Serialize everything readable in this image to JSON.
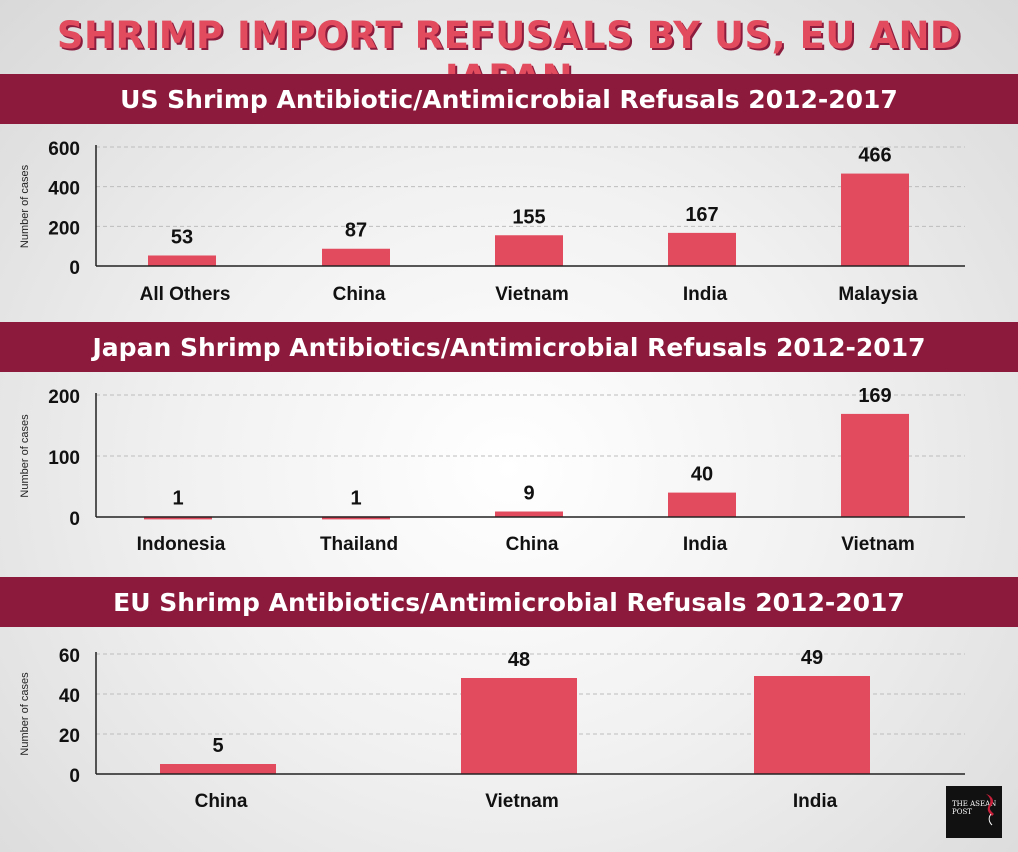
{
  "title": "SHRIMP IMPORT REFUSALS BY US, EU AND JAPAN",
  "colors": {
    "bar": "#e14b5d",
    "banner": "#8c1a3d",
    "title_shadow": "#8c1c3e"
  },
  "logo": {
    "text": "THE ASEAN POST",
    "icon": "bird-icon"
  },
  "charts": [
    {
      "banner": "US Shrimp Antibiotic/Antimicrobial Refusals 2012-2017"
    },
    {
      "banner": "Japan Shrimp Antibiotics/Antimicrobial Refusals 2012-2017"
    },
    {
      "banner": "EU Shrimp Antibiotics/Antimicrobial Refusals 2012-2017"
    }
  ],
  "chart_data": [
    {
      "type": "bar",
      "title": "US Shrimp Antibiotic/Antimicrobial Refusals 2012-2017",
      "categories": [
        "All Others",
        "China",
        "Vietnam",
        "India",
        "Malaysia"
      ],
      "values": [
        53,
        87,
        155,
        167,
        466
      ],
      "data_labels": [
        "53",
        "87",
        "155",
        "167",
        "466"
      ],
      "ylabel": "Number of cases",
      "ylim": [
        0,
        600
      ],
      "yticks": [
        0,
        200,
        400,
        600
      ],
      "grid": true
    },
    {
      "type": "bar",
      "title": "Japan Shrimp Antibiotics/Antimicrobial Refusals 2012-2017",
      "categories": [
        "Indonesia",
        "Thailand",
        "China",
        "India",
        "Vietnam"
      ],
      "values": [
        1,
        1,
        9,
        40,
        169
      ],
      "data_labels": [
        "1",
        "1",
        "9",
        "40",
        "169"
      ],
      "ylabel": "Number of cases",
      "ylim": [
        0,
        200
      ],
      "yticks": [
        0,
        100,
        200
      ],
      "grid": true
    },
    {
      "type": "bar",
      "title": "EU Shrimp Antibiotics/Antimicrobial Refusals 2012-2017",
      "categories": [
        "China",
        "Vietnam",
        "India"
      ],
      "values": [
        5,
        48,
        49
      ],
      "data_labels": [
        "5",
        "48",
        "49"
      ],
      "ylabel": "Number of cases",
      "ylim": [
        0,
        60
      ],
      "yticks": [
        0,
        20,
        40,
        60
      ],
      "grid": true
    }
  ]
}
